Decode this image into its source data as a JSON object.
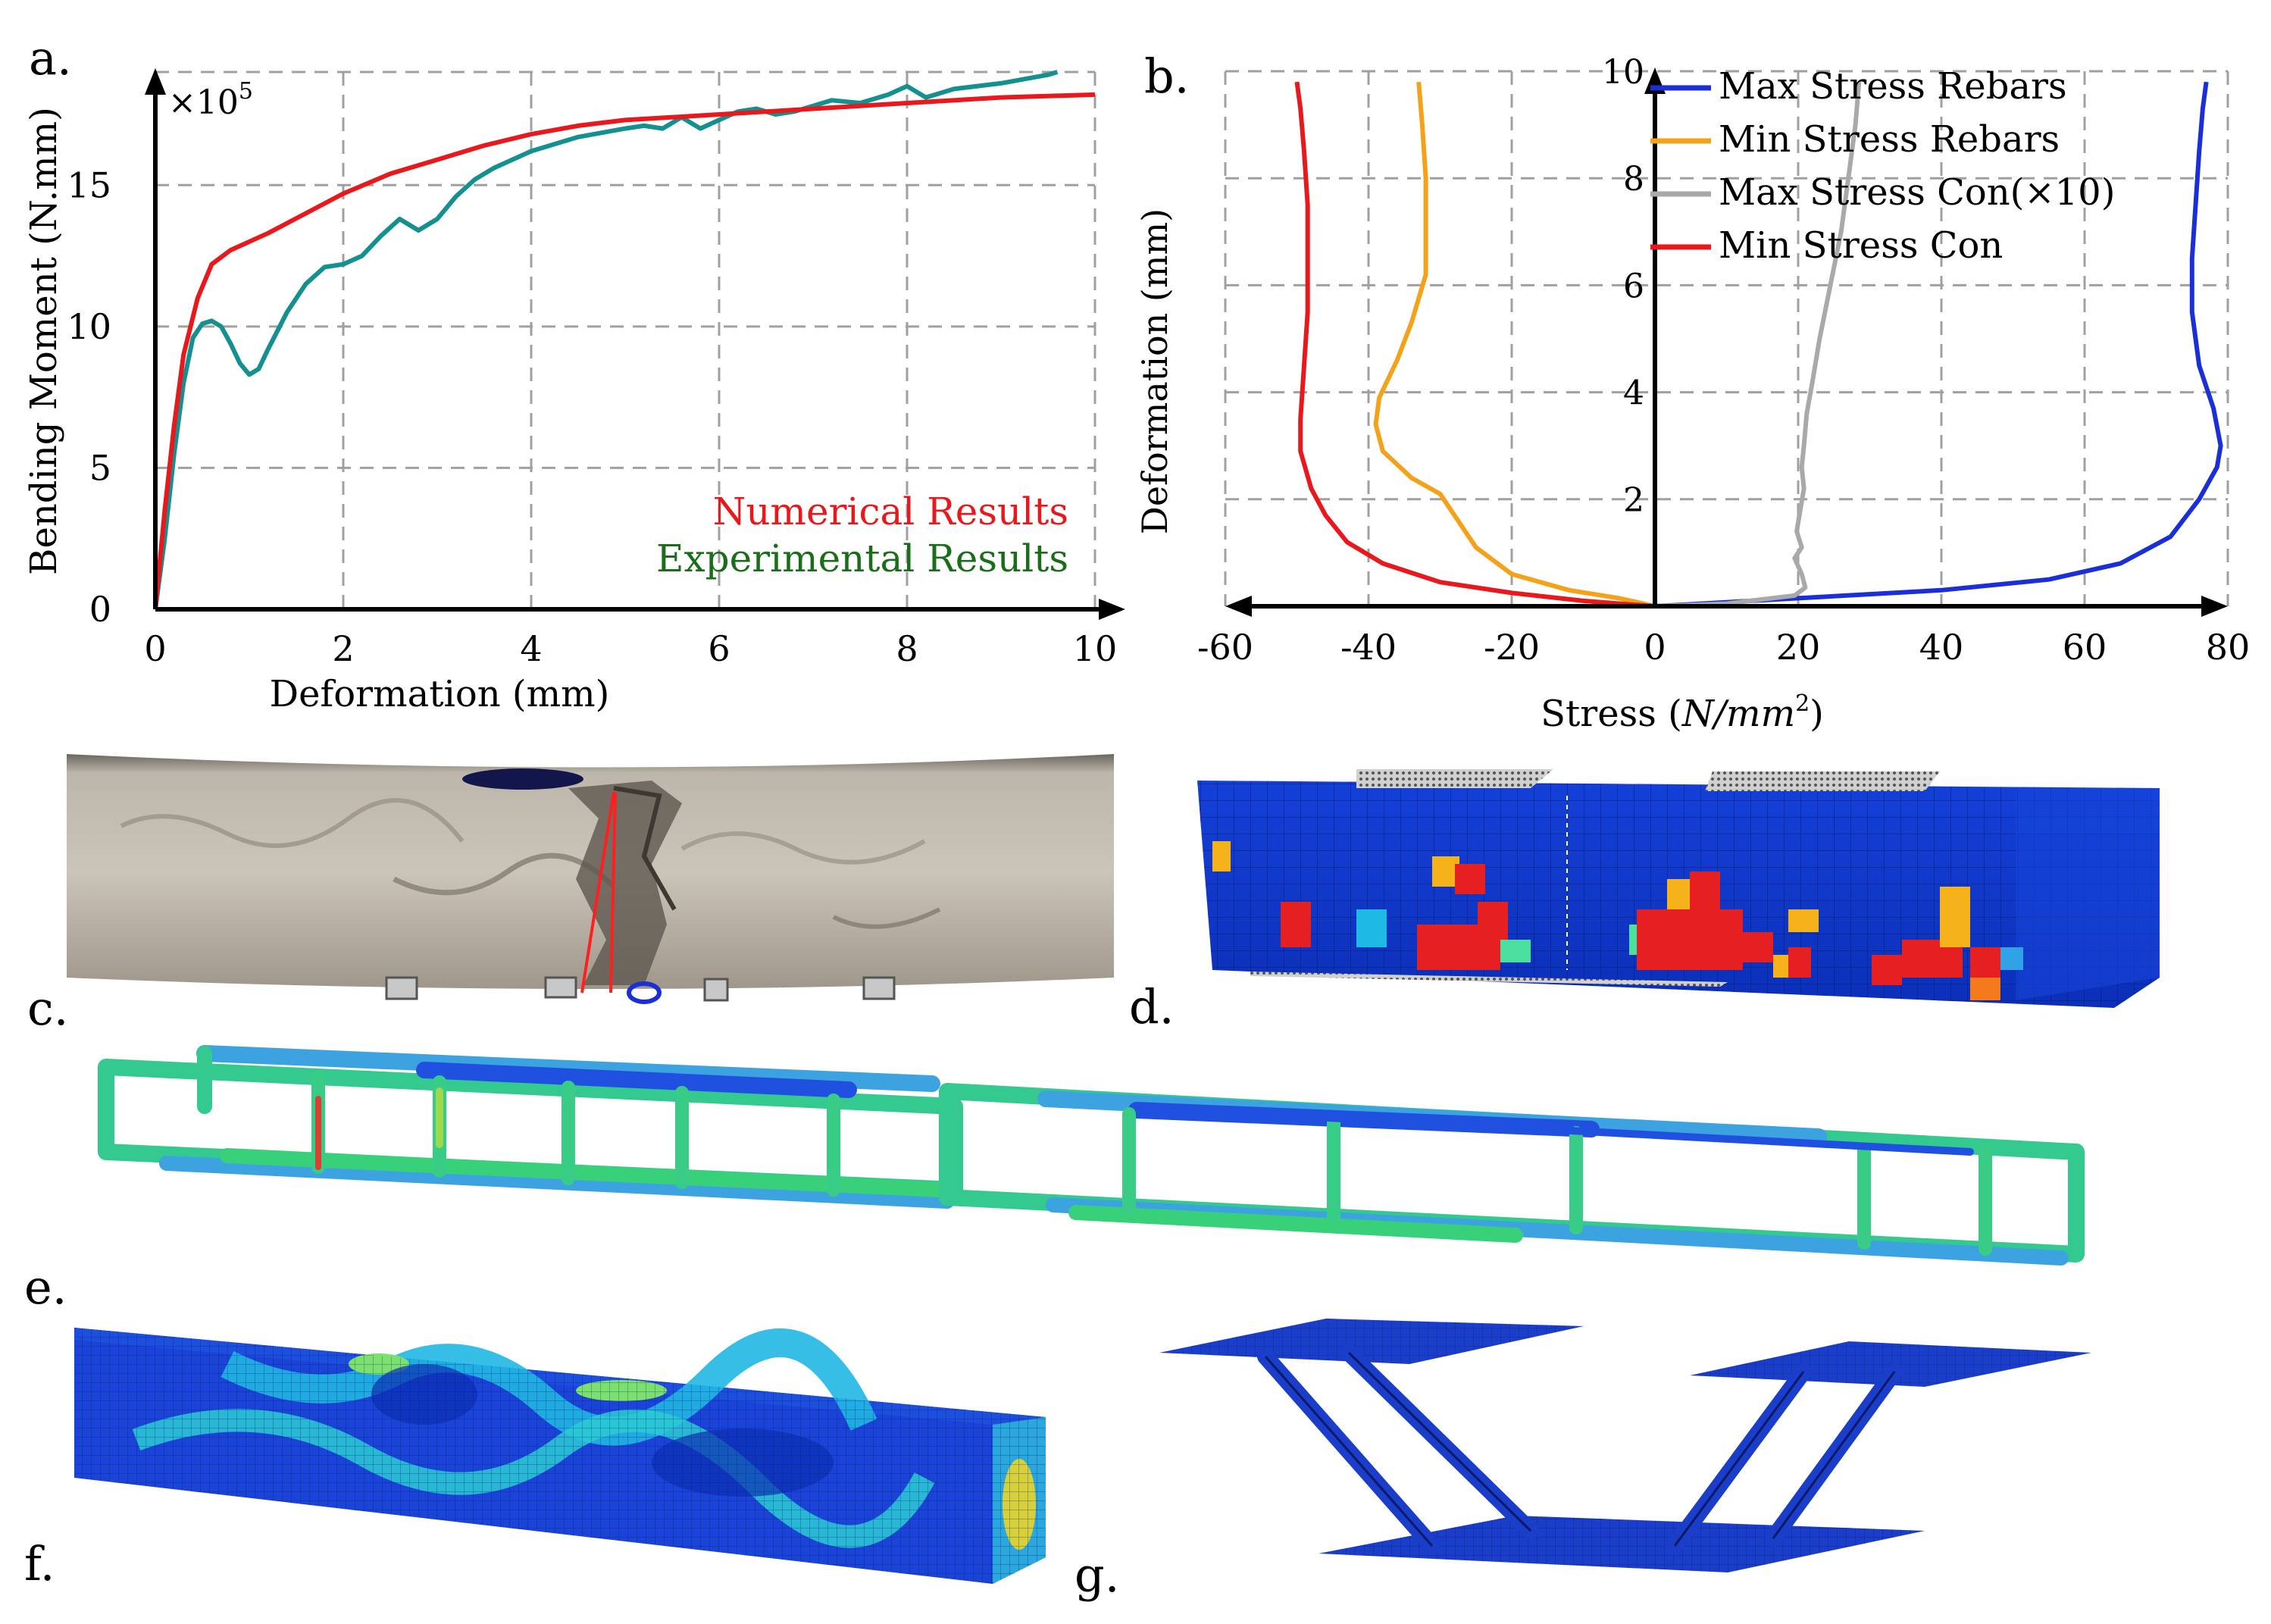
{
  "panel_labels": {
    "a": "a.",
    "b": "b.",
    "c": "c.",
    "d": "d.",
    "e": "e.",
    "f": "f.",
    "g": "g."
  },
  "colors": {
    "numerical": "#e8191d",
    "experimental": "#13908f",
    "experimental_legend": "#1a6e1a",
    "max_rebar": "#1a2fd8",
    "min_rebar": "#f5a21b",
    "max_con": "#a9a9a9",
    "min_con": "#e8191d",
    "fea_blue": "#1233d6"
  },
  "chart_data": [
    {
      "type": "line",
      "panel": "a",
      "xlabel": "Deformation (mm)",
      "ylabel": "Bending Moment (N.mm)",
      "scale_note": "×10",
      "scale_exp": "5",
      "xlim": [
        0,
        10
      ],
      "ylim": [
        0,
        19
      ],
      "x_ticks": [
        "0",
        "2",
        "4",
        "6",
        "8",
        "10"
      ],
      "y_ticks": [
        "0",
        "5",
        "10",
        "15"
      ],
      "y_tick_values": [
        0,
        5,
        10,
        15
      ],
      "grid": true,
      "legend_position": "bottom-right",
      "series": [
        {
          "name": "Numerical Results",
          "color_key": "numerical",
          "points": [
            [
              0,
              0
            ],
            [
              0.1,
              3.5
            ],
            [
              0.2,
              6.5
            ],
            [
              0.3,
              9
            ],
            [
              0.45,
              11
            ],
            [
              0.6,
              12.2
            ],
            [
              0.8,
              12.7
            ],
            [
              1.2,
              13.3
            ],
            [
              1.6,
              14
            ],
            [
              2,
              14.7
            ],
            [
              2.5,
              15.4
            ],
            [
              3,
              15.9
            ],
            [
              3.5,
              16.4
            ],
            [
              4,
              16.8
            ],
            [
              4.5,
              17.1
            ],
            [
              5,
              17.3
            ],
            [
              6,
              17.5
            ],
            [
              7,
              17.7
            ],
            [
              8,
              17.9
            ],
            [
              9,
              18.1
            ],
            [
              10,
              18.2
            ]
          ]
        },
        {
          "name": "Experimental Results",
          "color_key": "experimental",
          "points": [
            [
              0,
              0
            ],
            [
              0.1,
              2.5
            ],
            [
              0.2,
              5.5
            ],
            [
              0.3,
              8
            ],
            [
              0.4,
              9.6
            ],
            [
              0.5,
              10.1
            ],
            [
              0.6,
              10.2
            ],
            [
              0.7,
              10.0
            ],
            [
              0.8,
              9.4
            ],
            [
              0.9,
              8.7
            ],
            [
              1.0,
              8.3
            ],
            [
              1.1,
              8.5
            ],
            [
              1.2,
              9.2
            ],
            [
              1.4,
              10.5
            ],
            [
              1.6,
              11.5
            ],
            [
              1.8,
              12.1
            ],
            [
              2,
              12.2
            ],
            [
              2.2,
              12.5
            ],
            [
              2.4,
              13.2
            ],
            [
              2.6,
              13.8
            ],
            [
              2.8,
              13.4
            ],
            [
              3,
              13.8
            ],
            [
              3.2,
              14.6
            ],
            [
              3.4,
              15.2
            ],
            [
              3.6,
              15.6
            ],
            [
              4,
              16.2
            ],
            [
              4.5,
              16.7
            ],
            [
              5,
              17.0
            ],
            [
              5.2,
              17.1
            ],
            [
              5.4,
              17.0
            ],
            [
              5.6,
              17.4
            ],
            [
              5.8,
              17.0
            ],
            [
              6,
              17.3
            ],
            [
              6.2,
              17.6
            ],
            [
              6.4,
              17.7
            ],
            [
              6.6,
              17.5
            ],
            [
              6.8,
              17.6
            ],
            [
              7,
              17.8
            ],
            [
              7.2,
              18.0
            ],
            [
              7.5,
              17.9
            ],
            [
              7.8,
              18.2
            ],
            [
              8,
              18.5
            ],
            [
              8.2,
              18.1
            ],
            [
              8.5,
              18.4
            ],
            [
              9,
              18.6
            ],
            [
              9.5,
              18.9
            ],
            [
              9.6,
              19.0
            ]
          ]
        }
      ]
    },
    {
      "type": "line",
      "panel": "b",
      "xlabel_main": "Stress (",
      "xlabel_unit": "N/mm",
      "xlabel_exp": "2",
      "xlabel_close": ")",
      "ylabel": "Deformation (mm)",
      "xlim": [
        -60,
        80
      ],
      "ylim": [
        0,
        10
      ],
      "x_ticks": [
        "-60",
        "-40",
        "-20",
        "0",
        "20",
        "40",
        "60",
        "80"
      ],
      "x_tick_values": [
        -60,
        -40,
        -20,
        0,
        20,
        40,
        60,
        80
      ],
      "y_ticks": [
        "2",
        "4",
        "6",
        "8",
        "10"
      ],
      "y_tick_values": [
        2,
        4,
        6,
        8,
        10
      ],
      "grid": true,
      "legend_position": "top-right",
      "series": [
        {
          "name": "Max Stress Rebars",
          "color_key": "max_rebar",
          "points": [
            [
              0,
              0
            ],
            [
              20,
              0.15
            ],
            [
              40,
              0.3
            ],
            [
              55,
              0.5
            ],
            [
              65,
              0.8
            ],
            [
              72,
              1.3
            ],
            [
              76,
              2
            ],
            [
              78.5,
              2.6
            ],
            [
              79,
              3
            ],
            [
              78,
              3.7
            ],
            [
              76,
              4.5
            ],
            [
              75,
              5.5
            ],
            [
              75,
              6.5
            ],
            [
              75.5,
              7.5
            ],
            [
              76,
              8.5
            ],
            [
              76.5,
              9.3
            ],
            [
              77,
              9.8
            ]
          ]
        },
        {
          "name": "Min Stress Rebars",
          "color_key": "min_rebar",
          "points": [
            [
              0,
              0
            ],
            [
              -5,
              0.15
            ],
            [
              -12,
              0.3
            ],
            [
              -20,
              0.6
            ],
            [
              -25,
              1.1
            ],
            [
              -28,
              1.7
            ],
            [
              -30,
              2.1
            ],
            [
              -34,
              2.4
            ],
            [
              -38,
              2.9
            ],
            [
              -39,
              3.4
            ],
            [
              -38.5,
              3.9
            ],
            [
              -36,
              4.6
            ],
            [
              -34,
              5.3
            ],
            [
              -32,
              6.2
            ],
            [
              -32,
              7
            ],
            [
              -32,
              8
            ],
            [
              -32.5,
              9
            ],
            [
              -33,
              9.8
            ]
          ]
        },
        {
          "name": "Max Stress Con(×10)",
          "color_key": "max_con",
          "points": [
            [
              0,
              0
            ],
            [
              10,
              0.05
            ],
            [
              19.5,
              0.2
            ],
            [
              21,
              0.35
            ],
            [
              20.5,
              0.6
            ],
            [
              19.5,
              0.9
            ],
            [
              20.5,
              1.1
            ],
            [
              19.8,
              1.4
            ],
            [
              20.3,
              1.8
            ],
            [
              20.8,
              2.2
            ],
            [
              20.5,
              2.6
            ],
            [
              20.8,
              3.0
            ],
            [
              21.2,
              3.6
            ],
            [
              22,
              4.2
            ],
            [
              23,
              5
            ],
            [
              24.5,
              6
            ],
            [
              26,
              7
            ],
            [
              27,
              8
            ],
            [
              28,
              9
            ],
            [
              28.5,
              9.8
            ]
          ]
        },
        {
          "name": "Min Stress Con",
          "color_key": "min_con",
          "points": [
            [
              0,
              0
            ],
            [
              -10,
              0.1
            ],
            [
              -20,
              0.25
            ],
            [
              -30,
              0.45
            ],
            [
              -38,
              0.8
            ],
            [
              -43,
              1.2
            ],
            [
              -46,
              1.7
            ],
            [
              -48,
              2.2
            ],
            [
              -49.5,
              2.9
            ],
            [
              -49.5,
              3.5
            ],
            [
              -49,
              4.5
            ],
            [
              -48.5,
              5.5
            ],
            [
              -48.5,
              6.5
            ],
            [
              -48.5,
              7.5
            ],
            [
              -49,
              8.5
            ],
            [
              -49.5,
              9.3
            ],
            [
              -50,
              9.8
            ]
          ]
        }
      ]
    }
  ]
}
